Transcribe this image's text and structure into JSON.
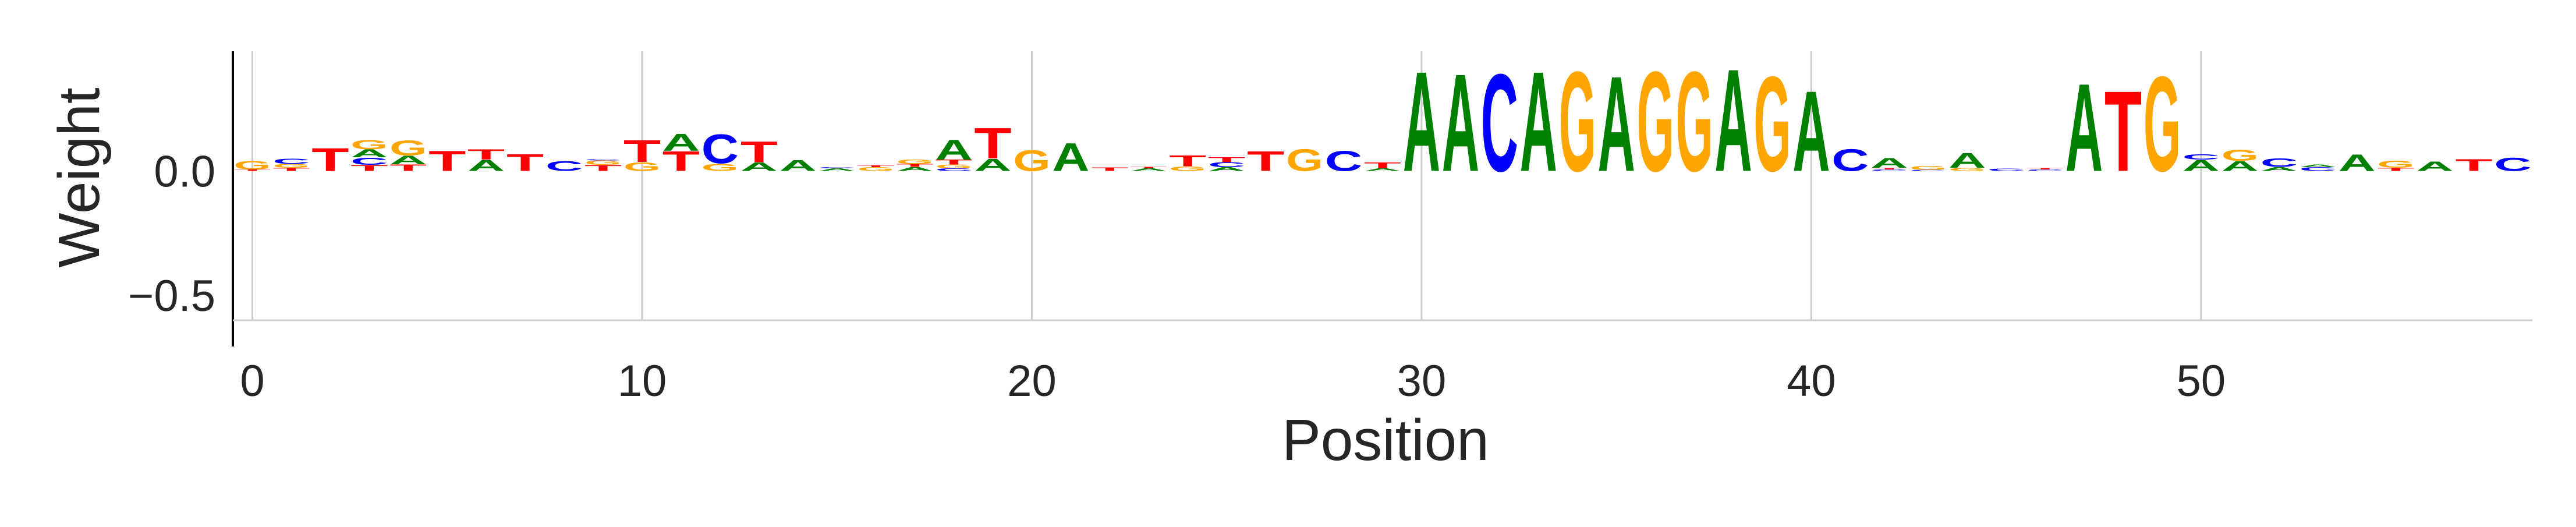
{
  "chart_data": {
    "type": "sequence_logo",
    "xlabel": "Position",
    "ylabel": "Weight",
    "xlim": [
      -0.5,
      58.5
    ],
    "ylim": [
      -0.6,
      0.48
    ],
    "x_ticks": [
      0,
      10,
      20,
      30,
      40,
      50
    ],
    "x_tick_labels": [
      "0",
      "10",
      "20",
      "30",
      "40",
      "50"
    ],
    "y_ticks": [
      0.0,
      -0.5
    ],
    "y_tick_labels": [
      "0.0",
      "−0.5"
    ],
    "grid": true,
    "colors": {
      "A": "#008000",
      "C": "#0000ff",
      "G": "#ffa500",
      "T": "#ff0000"
    },
    "positions": [
      [
        [
          "T",
          0.006
        ],
        [
          "G",
          0.036
        ]
      ],
      [
        [
          "T",
          0.012
        ],
        [
          "G",
          0.016
        ],
        [
          "C",
          0.022
        ]
      ],
      [
        [
          "T",
          0.095
        ]
      ],
      [
        [
          "T",
          0.024
        ],
        [
          "C",
          0.03
        ],
        [
          "A",
          0.032
        ],
        [
          "G",
          0.038
        ]
      ],
      [
        [
          "T",
          0.026
        ],
        [
          "A",
          0.036
        ],
        [
          "G",
          0.062
        ]
      ],
      [
        [
          "T",
          0.082
        ]
      ],
      [
        [
          "A",
          0.045
        ],
        [
          "T",
          0.042
        ]
      ],
      [
        [
          "T",
          0.07
        ]
      ],
      [
        [
          "C",
          0.04
        ]
      ],
      [
        [
          "T",
          0.024
        ],
        [
          "G",
          0.018
        ],
        [
          "C",
          0.004
        ]
      ],
      [
        [
          "G",
          0.036
        ],
        [
          "T",
          0.09
        ]
      ],
      [
        [
          "T",
          0.08
        ],
        [
          "A",
          0.07
        ]
      ],
      [
        [
          "G",
          0.03
        ],
        [
          "C",
          0.12
        ]
      ],
      [
        [
          "A",
          0.035
        ],
        [
          "T",
          0.085
        ]
      ],
      [
        [
          "A",
          0.045
        ]
      ],
      [
        [
          "A",
          0.01
        ],
        [
          "C",
          0.004
        ]
      ],
      [
        [
          "G",
          0.015
        ],
        [
          "T",
          0.008
        ]
      ],
      [
        [
          "A",
          0.016
        ],
        [
          "T",
          0.012
        ],
        [
          "G",
          0.018
        ]
      ],
      [
        [
          "C",
          0.01
        ],
        [
          "G",
          0.015
        ],
        [
          "T",
          0.02
        ],
        [
          "A",
          0.082
        ]
      ],
      [
        [
          "A",
          0.05
        ],
        [
          "T",
          0.125
        ]
      ],
      [
        [
          "G",
          0.085
        ]
      ],
      [
        [
          "A",
          0.115
        ]
      ],
      [
        [
          "T",
          0.014
        ]
      ],
      [
        [
          "A",
          0.01
        ],
        [
          "T",
          0.006
        ]
      ],
      [
        [
          "G",
          0.018
        ],
        [
          "T",
          0.045
        ]
      ],
      [
        [
          "A",
          0.015
        ],
        [
          "C",
          0.02
        ],
        [
          "T",
          0.02
        ]
      ],
      [
        [
          "T",
          0.08
        ]
      ],
      [
        [
          "G",
          0.09
        ]
      ],
      [
        [
          "C",
          0.082
        ]
      ],
      [
        [
          "A",
          0.01
        ],
        [
          "T",
          0.025
        ]
      ],
      [
        [
          "A",
          0.41
        ]
      ],
      [
        [
          "A",
          0.4
        ]
      ],
      [
        [
          "C",
          0.4
        ]
      ],
      [
        [
          "A",
          0.41
        ]
      ],
      [
        [
          "G",
          0.41
        ]
      ],
      [
        [
          "A",
          0.39
        ]
      ],
      [
        [
          "G",
          0.41
        ]
      ],
      [
        [
          "G",
          0.41
        ]
      ],
      [
        [
          "A",
          0.42
        ]
      ],
      [
        [
          "G",
          0.39
        ]
      ],
      [
        [
          "A",
          0.33
        ]
      ],
      [
        [
          "C",
          0.09
        ]
      ],
      [
        [
          "C",
          0.006
        ],
        [
          "T",
          0.006
        ],
        [
          "A",
          0.04
        ]
      ],
      [
        [
          "C",
          0.004
        ],
        [
          "G",
          0.015
        ]
      ],
      [
        [
          "G",
          0.012
        ],
        [
          "A",
          0.06
        ]
      ],
      [
        [
          "C",
          0.009
        ]
      ],
      [
        [
          "C",
          0.006
        ],
        [
          "T",
          0.006
        ]
      ],
      [
        [
          "A",
          0.36
        ]
      ],
      [
        [
          "T",
          0.33
        ]
      ],
      [
        [
          "G",
          0.39
        ]
      ],
      [
        [
          "A",
          0.045
        ],
        [
          "C",
          0.022
        ]
      ],
      [
        [
          "A",
          0.04
        ],
        [
          "G",
          0.045
        ]
      ],
      [
        [
          "A",
          0.016
        ],
        [
          "C",
          0.035
        ]
      ],
      [
        [
          "C",
          0.015
        ],
        [
          "A",
          0.01
        ]
      ],
      [
        [
          "A",
          0.068
        ]
      ],
      [
        [
          "T",
          0.012
        ],
        [
          "G",
          0.03
        ]
      ],
      [
        [
          "A",
          0.038
        ]
      ],
      [
        [
          "T",
          0.048
        ]
      ],
      [
        [
          "C",
          0.055
        ]
      ]
    ]
  }
}
